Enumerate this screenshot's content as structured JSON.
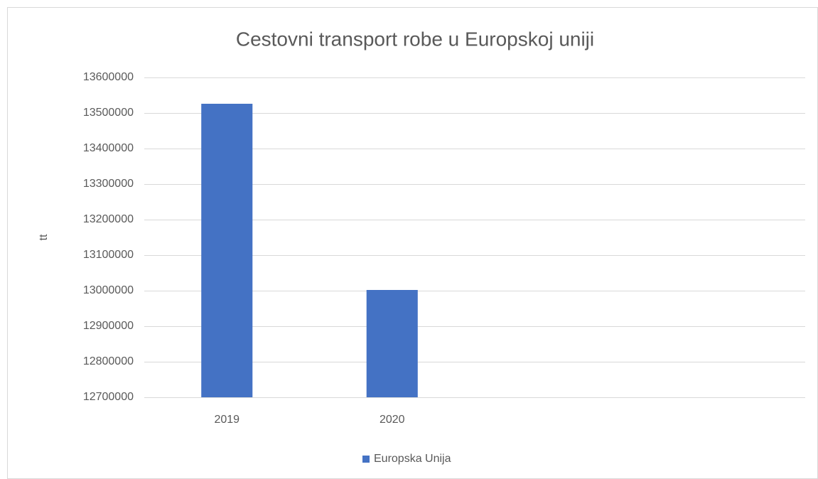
{
  "chart_data": {
    "type": "bar",
    "title": "Cestovni transport robe u Europskoj uniji",
    "y_label": "tt",
    "categories": [
      "2019",
      "2020",
      null,
      null
    ],
    "series": [
      {
        "name": "Europska Unija",
        "color": "#4472c4",
        "values": [
          13526000,
          13002000,
          null,
          null
        ]
      }
    ],
    "ylim": [
      12700000,
      13600000
    ],
    "yticks": [
      12700000,
      12800000,
      12900000,
      13000000,
      13100000,
      13200000,
      13300000,
      13400000,
      13500000,
      13600000
    ],
    "grid": true,
    "legend": "bottom"
  }
}
